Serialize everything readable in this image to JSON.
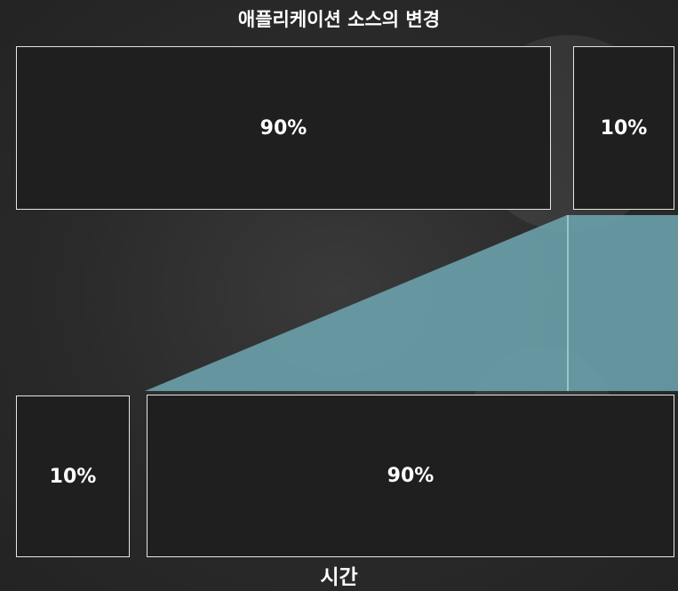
{
  "diagram": {
    "title": "애플리케이션 소스의 변경",
    "bottom_label": "시간",
    "top_row": {
      "large_block": {
        "label": "90%"
      },
      "small_block": {
        "label": "10%"
      }
    },
    "bottom_row": {
      "small_block": {
        "label": "10%"
      },
      "large_block": {
        "label": "90%"
      }
    },
    "colors": {
      "block_fill": "#1f1f1f",
      "block_border": "#e6e6e6",
      "connector": "#6fa8b3",
      "text": "#ffffff"
    }
  }
}
